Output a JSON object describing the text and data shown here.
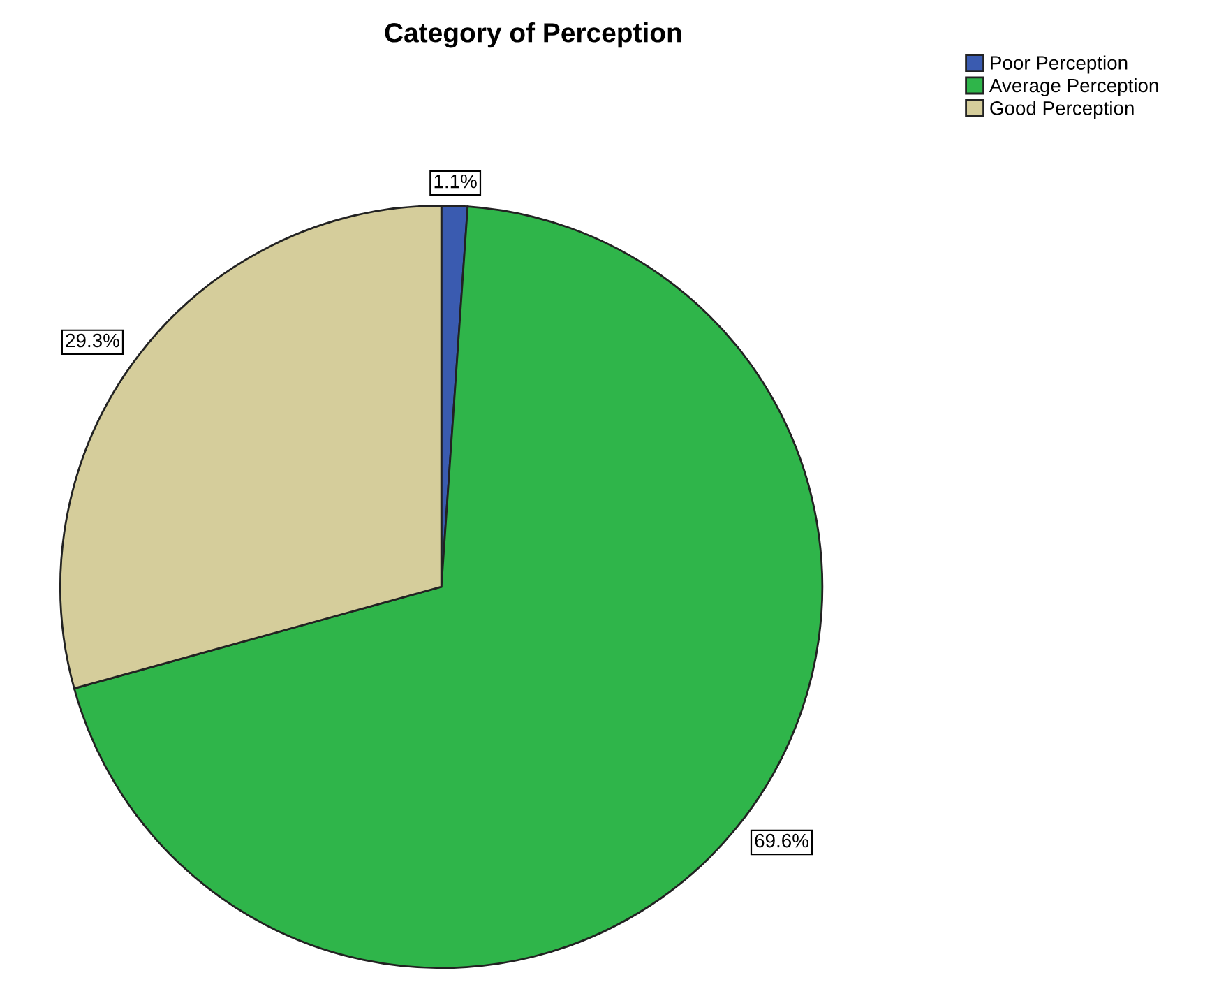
{
  "chart_data": {
    "type": "pie",
    "title": "Category of Perception",
    "categories": [
      "Poor Perception",
      "Average Perception",
      "Good Perception"
    ],
    "values": [
      1.1,
      69.6,
      29.3
    ],
    "colors": [
      "#3a5bb0",
      "#2fb54a",
      "#d5cd9b"
    ],
    "value_labels": [
      "1.1%",
      "69.6%",
      "29.3%"
    ],
    "legend": "top right"
  }
}
